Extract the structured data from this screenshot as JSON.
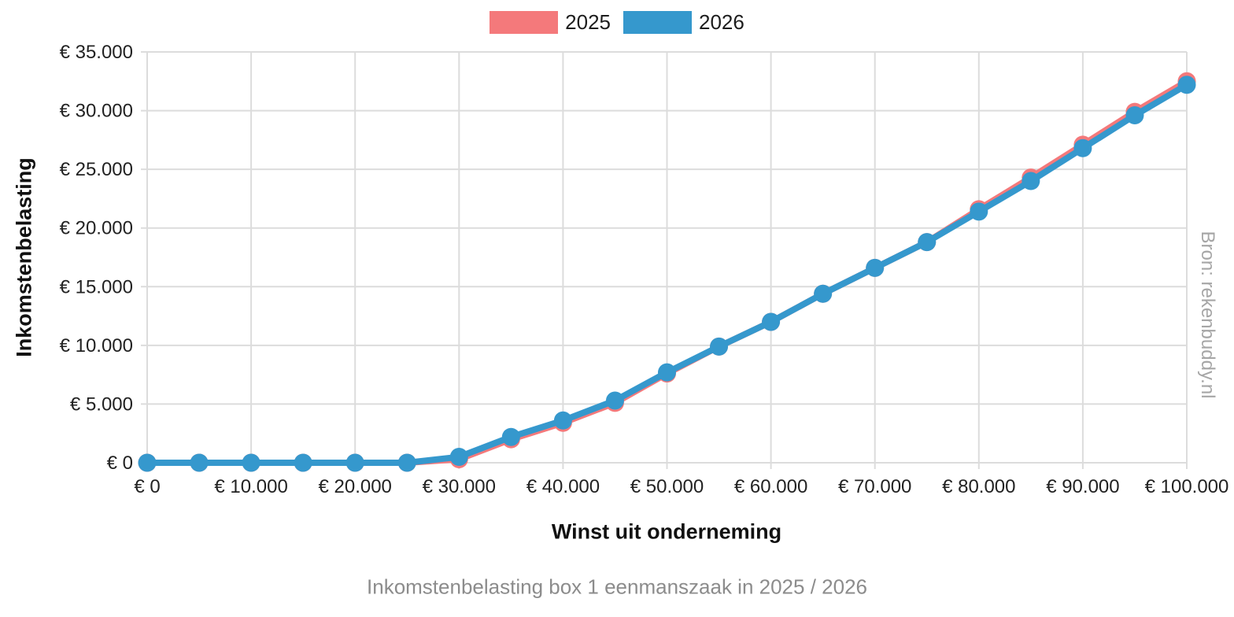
{
  "colors": {
    "grid": "#dcdcdc",
    "tick_text": "#222222",
    "series_2025": "#f4797b",
    "series_2026": "#3598cd",
    "caption_text": "#8c8c8c",
    "source_text": "#a6a6a6"
  },
  "chart_data": {
    "type": "line",
    "xlabel": "Winst uit onderneming",
    "ylabel": "Inkomstenbelasting",
    "caption": "Inkomstenbelasting box 1 eenmanszaak in 2025 / 2026",
    "source": "Bron: rekenbuddy.nl",
    "legend_position": "top",
    "grid": true,
    "xlim": [
      0,
      100000
    ],
    "ylim": [
      0,
      35000
    ],
    "x_grid_step": 10000,
    "y_grid_step": 5000,
    "x": [
      0,
      5000,
      10000,
      15000,
      20000,
      25000,
      30000,
      35000,
      40000,
      45000,
      50000,
      55000,
      60000,
      65000,
      70000,
      75000,
      80000,
      85000,
      90000,
      95000,
      100000
    ],
    "series": [
      {
        "name": "2025",
        "color": "#f4797b",
        "values": [
          0,
          0,
          0,
          0,
          0,
          0,
          300,
          2000,
          3400,
          5100,
          7600,
          9900,
          12000,
          14400,
          16600,
          18800,
          21600,
          24300,
          27100,
          29900,
          32500
        ]
      },
      {
        "name": "2026",
        "color": "#3598cd",
        "values": [
          0,
          0,
          0,
          0,
          0,
          0,
          500,
          2200,
          3600,
          5300,
          7700,
          9900,
          12000,
          14400,
          16600,
          18800,
          21400,
          24000,
          26800,
          29600,
          32200
        ]
      }
    ],
    "x_tick_labels": [
      "€ 0",
      "€ 10.000",
      "€ 20.000",
      "€ 30.000",
      "€ 40.000",
      "€ 50.000",
      "€ 60.000",
      "€ 70.000",
      "€ 80.000",
      "€ 90.000",
      "€ 100.000"
    ],
    "y_tick_labels": [
      "€ 0",
      "€ 5.000",
      "€ 10.000",
      "€ 15.000",
      "€ 20.000",
      "€ 25.000",
      "€ 30.000",
      "€ 35.000"
    ]
  }
}
